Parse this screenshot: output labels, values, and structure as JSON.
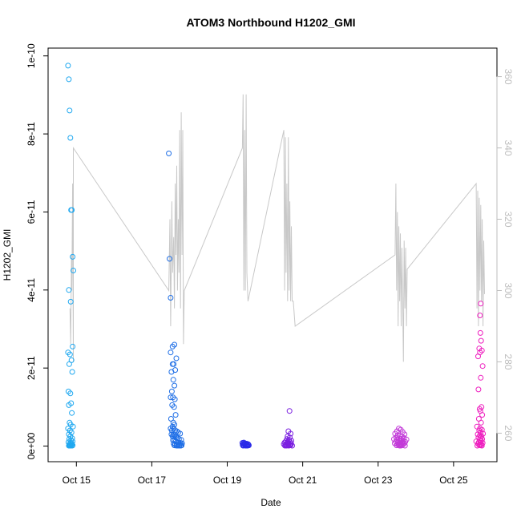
{
  "chart_data": {
    "type": "scatter",
    "title": "ATOM3 Northbound H1202_GMI",
    "xlabel": "Date",
    "ylabel": "H1202_GMI",
    "x_ticks": [
      {
        "label": "Oct 15",
        "day": 15
      },
      {
        "label": "Oct 17",
        "day": 17
      },
      {
        "label": "Oct 19",
        "day": 19
      },
      {
        "label": "Oct 21",
        "day": 21
      },
      {
        "label": "Oct 23",
        "day": 23
      },
      {
        "label": "Oct 25",
        "day": 25
      }
    ],
    "xlim_days": [
      14.25,
      26.15
    ],
    "y_ticks": [
      {
        "label": "0e+00",
        "value": 0
      },
      {
        "label": "2e-11",
        "value": 2e-11
      },
      {
        "label": "4e-11",
        "value": 4e-11
      },
      {
        "label": "6e-11",
        "value": 6e-11
      },
      {
        "label": "8e-11",
        "value": 8e-11
      },
      {
        "label": "1e-10",
        "value": 1e-10
      }
    ],
    "ylim": [
      -4e-12,
      1.02e-10
    ],
    "y2_ticks": [
      {
        "label": "260",
        "value": 260
      },
      {
        "label": "280",
        "value": 280
      },
      {
        "label": "300",
        "value": 300
      },
      {
        "label": "320",
        "value": 320
      },
      {
        "label": "340",
        "value": 340
      },
      {
        "label": "360",
        "value": 360
      }
    ],
    "y2lim": [
      252,
      368
    ],
    "point_colors": [
      "#1fa8f0",
      "#1e6ee6",
      "#2a2ae8",
      "#7a1fe0",
      "#c23ad8",
      "#ee1fbf"
    ],
    "line_color": "#c8c8c8",
    "series": [
      {
        "color": "#1fa8f0",
        "x": [
          14.78,
          14.8,
          14.82,
          14.84,
          14.86,
          14.88,
          14.9,
          14.92,
          14.8,
          14.85,
          14.9,
          14.78,
          14.83,
          14.87,
          14.81,
          14.89,
          14.79,
          14.84,
          14.86,
          14.8,
          14.88,
          14.82,
          14.85,
          14.91,
          14.78,
          14.83,
          14.87,
          14.8,
          14.84,
          14.89,
          14.81,
          14.86,
          14.9,
          14.79,
          14.85,
          14.88,
          14.82,
          14.87,
          14.84,
          14.9,
          14.81,
          14.86,
          14.8,
          14.83,
          14.89
        ],
        "y": [
          9.75e-11,
          9.4e-11,
          8.6e-11,
          7.9e-11,
          6.05e-11,
          6.05e-11,
          4.85e-11,
          4.5e-11,
          4e-11,
          3.7e-11,
          2.55e-11,
          2.4e-11,
          2.35e-11,
          2.2e-11,
          2.1e-11,
          1.9e-11,
          1.4e-11,
          1.35e-11,
          1.1e-11,
          1.05e-11,
          8.5e-12,
          6e-12,
          5.5e-12,
          5e-12,
          4.5e-12,
          4e-12,
          3.5e-12,
          3e-12,
          2.5e-12,
          2e-12,
          1.8e-12,
          1.5e-12,
          1.2e-12,
          1e-12,
          8e-13,
          6e-13,
          5e-13,
          4e-13,
          3e-13,
          2e-13,
          1e-13,
          1e-13,
          1e-13,
          1e-13,
          1e-13
        ]
      },
      {
        "color": "#1e6ee6",
        "x": [
          17.45,
          17.47,
          17.5,
          17.55,
          17.6,
          17.5,
          17.65,
          17.55,
          17.58,
          17.52,
          17.62,
          17.57,
          17.6,
          17.53,
          17.5,
          17.56,
          17.61,
          17.54,
          17.59,
          17.51,
          17.57,
          17.63,
          17.6,
          17.55,
          17.5,
          17.58,
          17.62,
          17.53,
          17.66,
          17.7,
          17.75,
          17.52,
          17.57,
          17.61,
          17.55,
          17.59,
          17.64,
          17.68,
          17.72,
          17.78,
          17.56,
          17.6,
          17.63,
          17.67,
          17.71,
          17.76,
          17.8,
          17.58,
          17.62,
          17.66,
          17.7,
          17.74,
          17.79,
          17.6,
          17.65,
          17.69,
          17.73,
          17.77
        ],
        "y": [
          7.5e-11,
          4.8e-11,
          3.8e-11,
          2.55e-11,
          2.6e-11,
          2.4e-11,
          2.25e-11,
          2.1e-11,
          2.1e-11,
          1.9e-11,
          1.95e-11,
          1.7e-11,
          1.55e-11,
          1.4e-11,
          1.25e-11,
          1.25e-11,
          1.2e-11,
          1.05e-11,
          1e-11,
          7e-12,
          6e-12,
          8e-12,
          5.5e-12,
          5e-12,
          4.5e-12,
          4.5e-12,
          4e-12,
          4e-12,
          3.8e-12,
          3.5e-12,
          3.2e-12,
          3e-12,
          3e-12,
          2.8e-12,
          2.5e-12,
          2.5e-12,
          2.2e-12,
          2e-12,
          1.8e-12,
          1.6e-12,
          1.5e-12,
          1.4e-12,
          1.2e-12,
          1e-12,
          9e-13,
          8e-13,
          7e-13,
          6e-13,
          5e-13,
          4e-13,
          3e-13,
          3e-13,
          2e-13,
          2e-13,
          1e-13,
          1e-13,
          1e-13,
          1e-13
        ]
      },
      {
        "color": "#2a2ae8",
        "x": [
          19.4,
          19.43,
          19.46,
          19.49,
          19.52,
          19.55,
          19.41,
          19.44,
          19.47,
          19.5,
          19.53,
          19.56,
          19.42,
          19.45,
          19.48,
          19.51,
          19.54,
          19.57,
          19.44,
          19.5
        ],
        "y": [
          8e-13,
          6e-13,
          5e-13,
          4e-13,
          6e-13,
          5e-13,
          3e-13,
          2e-13,
          7e-13,
          3e-13,
          2e-13,
          4e-13,
          1e-13,
          5e-13,
          1e-13,
          6e-13,
          1e-13,
          2e-13,
          9e-13,
          1e-13
        ]
      },
      {
        "color": "#7a1fe0",
        "x": [
          20.65,
          20.62,
          20.68,
          20.6,
          20.66,
          20.58,
          20.64,
          20.7,
          20.55,
          20.61,
          20.67,
          20.52,
          20.59,
          20.63,
          20.69,
          20.5,
          20.56,
          20.62,
          20.68,
          20.54,
          20.6,
          20.66,
          20.72,
          20.57,
          20.63,
          20.53
        ],
        "y": [
          9e-12,
          3.8e-12,
          3.2e-12,
          2.5e-12,
          2.2e-12,
          1.8e-12,
          1.6e-12,
          1.4e-12,
          1.2e-12,
          1.1e-12,
          1e-12,
          9e-13,
          8e-13,
          7e-13,
          6e-13,
          5e-13,
          4e-13,
          4e-13,
          3e-13,
          3e-13,
          2e-13,
          2e-13,
          1e-13,
          1e-13,
          1e-13,
          1e-13
        ]
      },
      {
        "color": "#c23ad8",
        "x": [
          23.55,
          23.6,
          23.5,
          23.65,
          23.45,
          23.7,
          23.52,
          23.58,
          23.63,
          23.48,
          23.68,
          23.55,
          23.6,
          23.42,
          23.75,
          23.5,
          23.57,
          23.62,
          23.67,
          23.47,
          23.72,
          23.53,
          23.59,
          23.64,
          23.44,
          23.69,
          23.56,
          23.61,
          23.51,
          23.66,
          23.54,
          23.58,
          23.63,
          23.49,
          23.71,
          23.57,
          23.6
        ],
        "y": [
          4.5e-12,
          4.2e-12,
          3.8e-12,
          3.6e-12,
          3.2e-12,
          3e-12,
          2.8e-12,
          2.6e-12,
          2.4e-12,
          2.2e-12,
          2.1e-12,
          2e-12,
          1.9e-12,
          1.8e-12,
          1.7e-12,
          1.6e-12,
          1.5e-12,
          1.4e-12,
          1.3e-12,
          1.2e-12,
          1.1e-12,
          1e-12,
          9e-13,
          8e-13,
          7e-13,
          7e-13,
          6e-13,
          5e-13,
          5e-13,
          4e-13,
          3e-13,
          3e-13,
          2e-13,
          2e-13,
          1e-13,
          1e-13,
          1e-13
        ]
      },
      {
        "color": "#ee1fbf",
        "x": [
          25.72,
          25.7,
          25.71,
          25.73,
          25.68,
          25.75,
          25.7,
          25.65,
          25.77,
          25.72,
          25.66,
          25.74,
          25.69,
          25.71,
          25.76,
          25.67,
          25.73,
          25.62,
          25.7,
          25.75,
          25.68,
          25.72,
          25.78,
          25.64,
          25.7,
          25.74,
          25.66,
          25.71,
          25.76,
          25.69,
          25.73,
          25.6,
          25.67,
          25.72,
          25.77,
          25.65,
          25.7,
          25.74,
          25.68,
          25.71,
          25.63,
          25.75
        ],
        "y": [
          3.65e-11,
          3.35e-11,
          2.9e-11,
          2.7e-11,
          2.5e-11,
          2.45e-11,
          2.4e-11,
          2.3e-11,
          2.05e-11,
          1.75e-11,
          1.45e-11,
          1e-11,
          9.5e-12,
          9e-12,
          8e-12,
          7e-12,
          6e-12,
          5e-12,
          4.5e-12,
          4.2e-12,
          4e-12,
          3.5e-12,
          3.2e-12,
          3e-12,
          2.8e-12,
          2.5e-12,
          2.2e-12,
          2e-12,
          1.8e-12,
          1.6e-12,
          1.4e-12,
          1.2e-12,
          1e-12,
          9e-13,
          8e-13,
          6e-13,
          5e-13,
          4e-13,
          3e-13,
          2e-13,
          1e-13,
          1e-13
        ]
      }
    ],
    "line": {
      "x": [
        14.83,
        14.85,
        14.87,
        14.88,
        14.9,
        14.92,
        14.92,
        17.45,
        17.48,
        17.5,
        17.53,
        17.55,
        17.58,
        17.6,
        17.62,
        17.64,
        17.66,
        17.68,
        17.7,
        17.72,
        17.74,
        17.76,
        17.78,
        17.8,
        17.82,
        17.84,
        17.86,
        19.4,
        19.42,
        19.44,
        19.46,
        19.48,
        19.5,
        19.52,
        19.55,
        20.5,
        20.52,
        20.54,
        20.56,
        20.58,
        20.6,
        20.62,
        20.64,
        20.66,
        20.68,
        20.7,
        20.72,
        20.75,
        20.8,
        23.45,
        23.47,
        23.49,
        23.51,
        23.53,
        23.55,
        23.57,
        23.59,
        23.61,
        23.63,
        23.65,
        23.67,
        23.69,
        23.71,
        23.73,
        23.75,
        23.77,
        25.6,
        25.62,
        25.64,
        25.66,
        25.68,
        25.7,
        25.72,
        25.74,
        25.76,
        25.78,
        25.8,
        25.82
      ],
      "y": [
        295,
        285,
        310,
        300,
        330,
        280,
        340,
        300,
        320,
        290,
        325,
        305,
        315,
        295,
        330,
        310,
        335,
        300,
        320,
        305,
        345,
        295,
        350,
        310,
        345,
        285,
        300,
        340,
        355,
        300,
        345,
        300,
        355,
        305,
        297,
        345,
        300,
        343,
        305,
        330,
        297,
        343,
        300,
        325,
        297,
        318,
        297,
        297,
        290,
        310,
        330,
        300,
        322,
        290,
        318,
        297,
        316,
        290,
        312,
        297,
        280,
        314,
        295,
        312,
        290,
        306,
        330,
        295,
        328,
        290,
        326,
        300,
        324,
        297,
        320,
        290,
        314,
        299
      ]
    }
  }
}
